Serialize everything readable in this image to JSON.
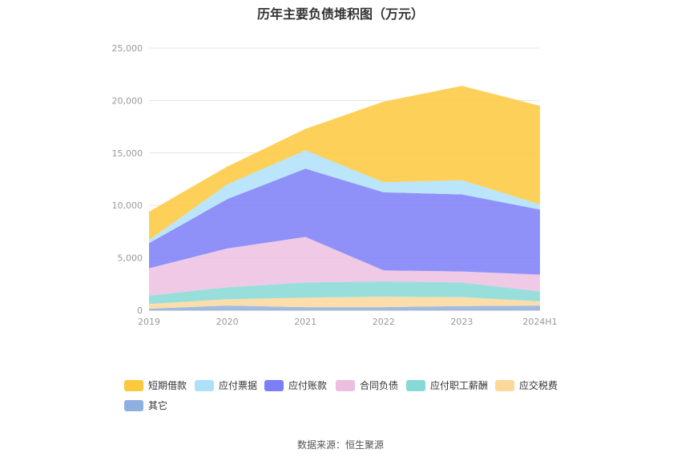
{
  "chart_data": {
    "type": "area",
    "stacked": true,
    "title": "历年主要负债堆积图（万元）",
    "categories": [
      "2019",
      "2020",
      "2021",
      "2022",
      "2023",
      "2024H1"
    ],
    "ylim": [
      0,
      25000
    ],
    "yticks": [
      "0",
      "5,000",
      "10,000",
      "15,000",
      "20,000",
      "25,000"
    ],
    "grid": true,
    "legend_position": "bottom",
    "series": [
      {
        "name": "其它",
        "color": "#8fb0de",
        "values": [
          150,
          450,
          300,
          300,
          400,
          450
        ]
      },
      {
        "name": "应交税费",
        "color": "#fdd89b",
        "values": [
          450,
          600,
          900,
          1000,
          850,
          400
        ]
      },
      {
        "name": "应付职工薪酬",
        "color": "#86d9d6",
        "values": [
          800,
          1150,
          1450,
          1450,
          1400,
          950
        ]
      },
      {
        "name": "合同负债",
        "color": "#ecbfe0",
        "values": [
          2600,
          3700,
          4350,
          1050,
          1050,
          1600
        ]
      },
      {
        "name": "应付账款",
        "color": "#7b7ef7",
        "values": [
          2400,
          4700,
          6500,
          7450,
          7350,
          6200
        ]
      },
      {
        "name": "应付票据",
        "color": "#aee0f9",
        "values": [
          300,
          1400,
          1750,
          950,
          1350,
          500
        ]
      },
      {
        "name": "短期借款",
        "color": "#fdc83d",
        "values": [
          2700,
          1700,
          2050,
          7700,
          9000,
          9400
        ]
      }
    ]
  },
  "source": "数据来源：恒生聚源"
}
